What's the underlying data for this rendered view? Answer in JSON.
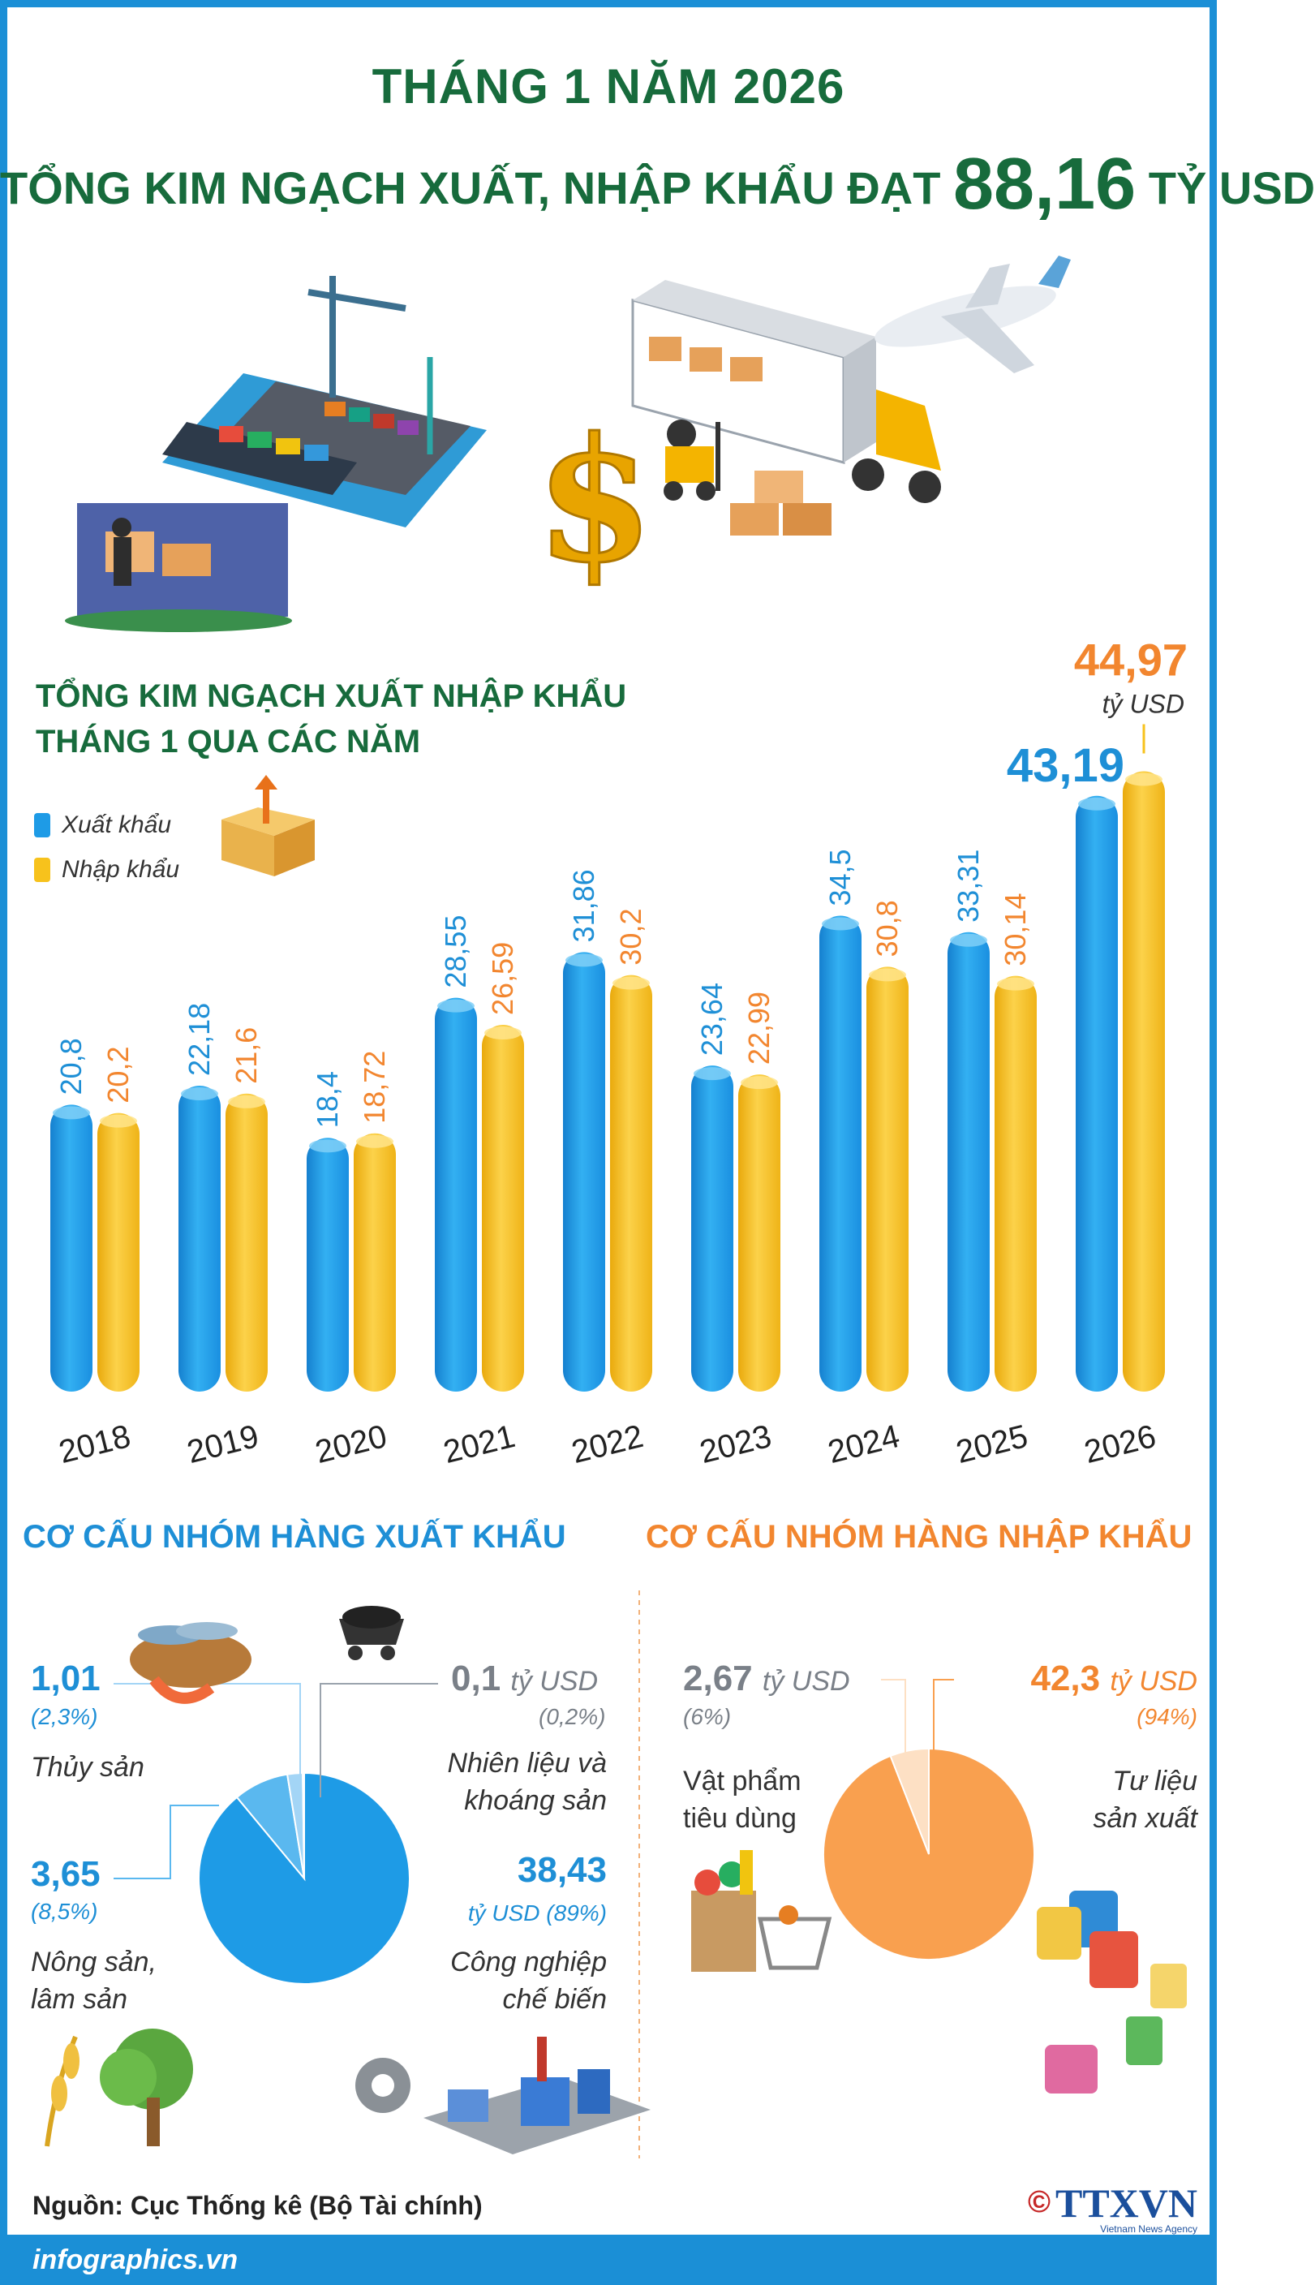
{
  "header": {
    "line1": "THÁNG 1 NĂM 2026",
    "line2_prefix": "TỔNG KIM NGẠCH XUẤT, NHẬP KHẨU ĐẠT ",
    "line2_value": "88,16",
    "line2_suffix": " TỶ USD"
  },
  "section_bar": {
    "title_line1": "TỔNG KIM NGẠCH XUẤT NHẬP KHẨU",
    "title_line2": "THÁNG 1 QUA CÁC NĂM"
  },
  "legend": {
    "export_label": "Xuất khẩu",
    "import_label": "Nhập khẩu"
  },
  "chart_data": {
    "type": "bar",
    "categories": [
      "2018",
      "2019",
      "2020",
      "2021",
      "2022",
      "2023",
      "2024",
      "2025",
      "2026"
    ],
    "series": [
      {
        "name": "Xuất khẩu",
        "values": [
          20.8,
          22.18,
          18.4,
          28.55,
          31.86,
          23.64,
          34.5,
          33.31,
          43.19
        ],
        "labels": [
          "20,8",
          "22,18",
          "18,4",
          "28,55",
          "31,86",
          "23,64",
          "34,5",
          "33,31",
          "43,19"
        ],
        "color": "#1e9be6"
      },
      {
        "name": "Nhập khẩu",
        "values": [
          20.2,
          21.6,
          18.72,
          26.59,
          30.2,
          22.99,
          30.8,
          30.14,
          44.97
        ],
        "labels": [
          "20,2",
          "21,6",
          "18,72",
          "26,59",
          "30,2",
          "22,99",
          "30,8",
          "30,14",
          "44,97"
        ],
        "color": "#f7c21c"
      }
    ],
    "unit_note": "tỷ USD",
    "legend_position": "top-left",
    "grid": false
  },
  "pie_export": {
    "title": "CƠ CẤU NHÓM HÀNG XUẤT KHẨU",
    "unit": "tỷ USD",
    "chart_data": {
      "type": "pie",
      "slices": [
        {
          "label_lines": [
            "Công nghiệp",
            "chế biến"
          ],
          "value": 38.43,
          "value_text": "38,43",
          "pct": "(89%)",
          "color": "#1e9be6"
        },
        {
          "label_lines": [
            "Nông sản,",
            "lâm sản"
          ],
          "value": 3.65,
          "value_text": "3,65",
          "pct": "(8,5%)",
          "color": "#5ab8ef"
        },
        {
          "label_lines": [
            "Thủy sản"
          ],
          "value": 1.01,
          "value_text": "1,01",
          "pct": "(2,3%)",
          "color": "#a3d5f6"
        },
        {
          "label_lines": [
            "Nhiên liệu và",
            "khoáng sản"
          ],
          "value": 0.1,
          "value_text": "0,1",
          "pct": "(0,2%)",
          "color": "#ffffff"
        }
      ]
    }
  },
  "pie_import": {
    "title": "CƠ CẤU NHÓM HÀNG NHẬP KHẨU",
    "unit": "tỷ USD",
    "chart_data": {
      "type": "pie",
      "slices": [
        {
          "label_lines": [
            "Tư liệu",
            "sản xuất"
          ],
          "value": 42.3,
          "value_text": "42,3",
          "pct": "(94%)",
          "color": "#f9a04f"
        },
        {
          "label_lines": [
            "Vật phẩm",
            "tiêu dùng"
          ],
          "value": 2.67,
          "value_text": "2,67",
          "pct": "(6%)",
          "color": "#fde0c4"
        }
      ]
    }
  },
  "source": "Nguồn: Cục Thống kê (Bộ Tài chính)",
  "footer": {
    "site": "infographics.vn",
    "brand": "TTXVN",
    "brand_sub": "Vietnam News Agency",
    "copyright": "©"
  },
  "colors": {
    "title_green": "#176b3c",
    "export_blue": "#1e9be6",
    "import_yellow": "#f7c21c",
    "import_orange": "#f2862f",
    "frame_blue": "#1b8fd6"
  }
}
